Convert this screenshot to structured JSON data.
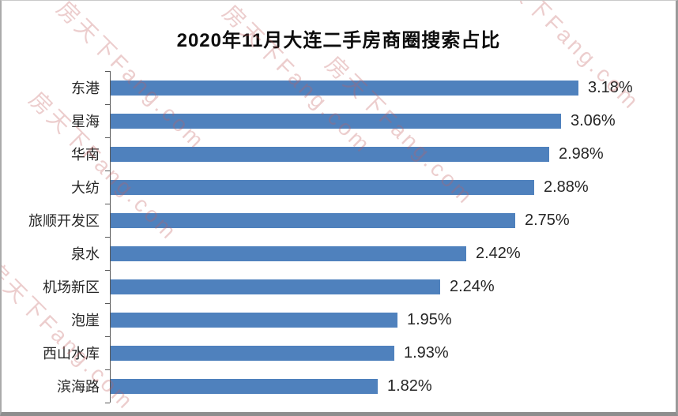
{
  "title": "2020年11月大连二手房商圈搜索占比",
  "watermark": {
    "text": "房天下Fang.com",
    "color": "#c25e5e"
  },
  "chart_data": {
    "type": "bar",
    "orientation": "horizontal",
    "title": "2020年11月大连二手房商圈搜索占比",
    "categories": [
      "东港",
      "星海",
      "华南",
      "大纺",
      "旅顺开发区",
      "泉水",
      "机场新区",
      "泡崖",
      "西山水库",
      "滨海路"
    ],
    "values": [
      3.18,
      3.06,
      2.98,
      2.88,
      2.75,
      2.42,
      2.24,
      1.95,
      1.93,
      1.82
    ],
    "value_labels": [
      "3.18%",
      "3.06%",
      "2.98%",
      "2.88%",
      "2.75%",
      "2.42%",
      "2.24%",
      "1.95%",
      "1.93%",
      "1.82%"
    ],
    "xlabel": "",
    "ylabel": "",
    "xlim": [
      0,
      3.4
    ],
    "grid": false,
    "legend": false,
    "bar_color": "#4f81bd",
    "axis_color": "#595959",
    "label_color": "#262626",
    "title_color": "#0d0d0d"
  }
}
